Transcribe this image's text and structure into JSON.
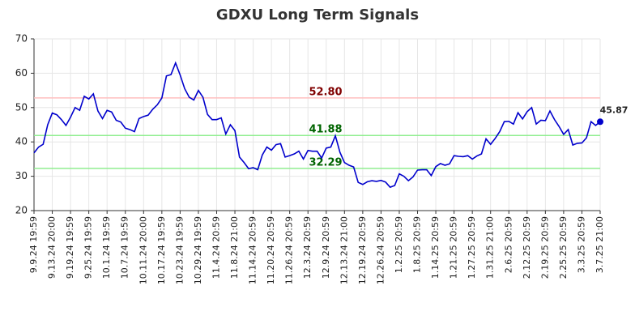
{
  "chart_data": {
    "type": "line",
    "title": "GDXU Long Term Signals",
    "categories": [
      "9.9.24 19:59",
      null,
      null,
      null,
      "9.13.24 20:00",
      null,
      null,
      null,
      "9.19.24 19:59",
      null,
      null,
      null,
      "9.25.24 19:59",
      null,
      null,
      null,
      "10.1.24 19:59",
      null,
      null,
      null,
      "10.7.24 19:59",
      null,
      null,
      null,
      "10.11.24 20:00",
      null,
      null,
      null,
      "10.17.24 19:59",
      null,
      null,
      null,
      "10.23.24 19:59",
      null,
      null,
      null,
      "10.29.24 19:59",
      null,
      null,
      null,
      "11.4.24 20:59",
      null,
      null,
      null,
      "11.8.24 21:00",
      null,
      null,
      null,
      "11.14.24 20:59",
      null,
      null,
      null,
      "11.20.24 20:59",
      null,
      null,
      null,
      "11.26.24 20:59",
      null,
      null,
      null,
      "12.3.24 20:59",
      null,
      null,
      null,
      "12.9.24 20:59",
      null,
      null,
      null,
      "12.13.24 21:00",
      null,
      null,
      null,
      "12.19.24 20:59",
      null,
      null,
      null,
      "12.26.24 20:59",
      null,
      null,
      null,
      "1.2.25 20:59",
      null,
      null,
      null,
      "1.8.25 20:59",
      null,
      null,
      null,
      "1.14.25 20:59",
      null,
      null,
      null,
      "1.21.25 20:59",
      null,
      null,
      null,
      "1.27.25 20:59",
      null,
      null,
      null,
      "1.31.25 21:00",
      null,
      null,
      null,
      "2.6.25 20:59",
      null,
      null,
      null,
      "2.12.25 20:59",
      null,
      null,
      null,
      "2.19.25 20:59",
      null,
      null,
      null,
      "2.25.25 20:59",
      null,
      null,
      null,
      "3.3.25 20:59",
      null,
      null,
      null,
      "3.7.25 21:00"
    ],
    "values": [
      36.8,
      38.5,
      39.3,
      45,
      48.4,
      47.9,
      46.5,
      44.8,
      47.2,
      50,
      49.2,
      53.3,
      52.5,
      54,
      49,
      46.8,
      49.2,
      48.7,
      46.3,
      45.8,
      44,
      43.6,
      43,
      46.8,
      47.4,
      47.8,
      49.5,
      50.8,
      52.8,
      59.2,
      59.6,
      63,
      59.5,
      55.5,
      53,
      52.2,
      55,
      53,
      48,
      46.5,
      46.5,
      47,
      42.3,
      45,
      43.3,
      35.6,
      34,
      32.2,
      32.5,
      31.9,
      36.2,
      38.5,
      37.6,
      39.2,
      39.5,
      35.6,
      36,
      36.5,
      37.3,
      35,
      37.5,
      37.3,
      37.3,
      35.3,
      38.2,
      38.5,
      41.8,
      37,
      34,
      33.2,
      32.7,
      28.2,
      27.6,
      28.4,
      28.7,
      28.5,
      28.8,
      28.3,
      26.8,
      27.3,
      30.7,
      30,
      28.7,
      29.8,
      31.8,
      31.9,
      31.9,
      30.2,
      32.8,
      33.7,
      33.2,
      33.6,
      36,
      35.8,
      35.7,
      36,
      35,
      35.9,
      36.5,
      40.9,
      39.3,
      41,
      43,
      45.9,
      46,
      45.2,
      48.5,
      46.7,
      48.8,
      50,
      45.2,
      46.3,
      46.2,
      49,
      46.5,
      44.5,
      42.2,
      43.6,
      39.1,
      39.6,
      39.7,
      41.2,
      45.9,
      44.8,
      45.87
    ],
    "color": "#0000cc",
    "ylim": [
      20,
      70
    ],
    "yticks": [
      20,
      30,
      40,
      50,
      60,
      70
    ],
    "grid": true,
    "hlines": [
      {
        "value": 52.8,
        "label": "52.80",
        "color": "#ffbfbf",
        "label_color": "#800000"
      },
      {
        "value": 41.88,
        "color": "#90ee90",
        "label_color": "#006400"
      },
      {
        "value": 32.29,
        "color": "#90ee90",
        "label_color": "#006400"
      }
    ]
  }
}
